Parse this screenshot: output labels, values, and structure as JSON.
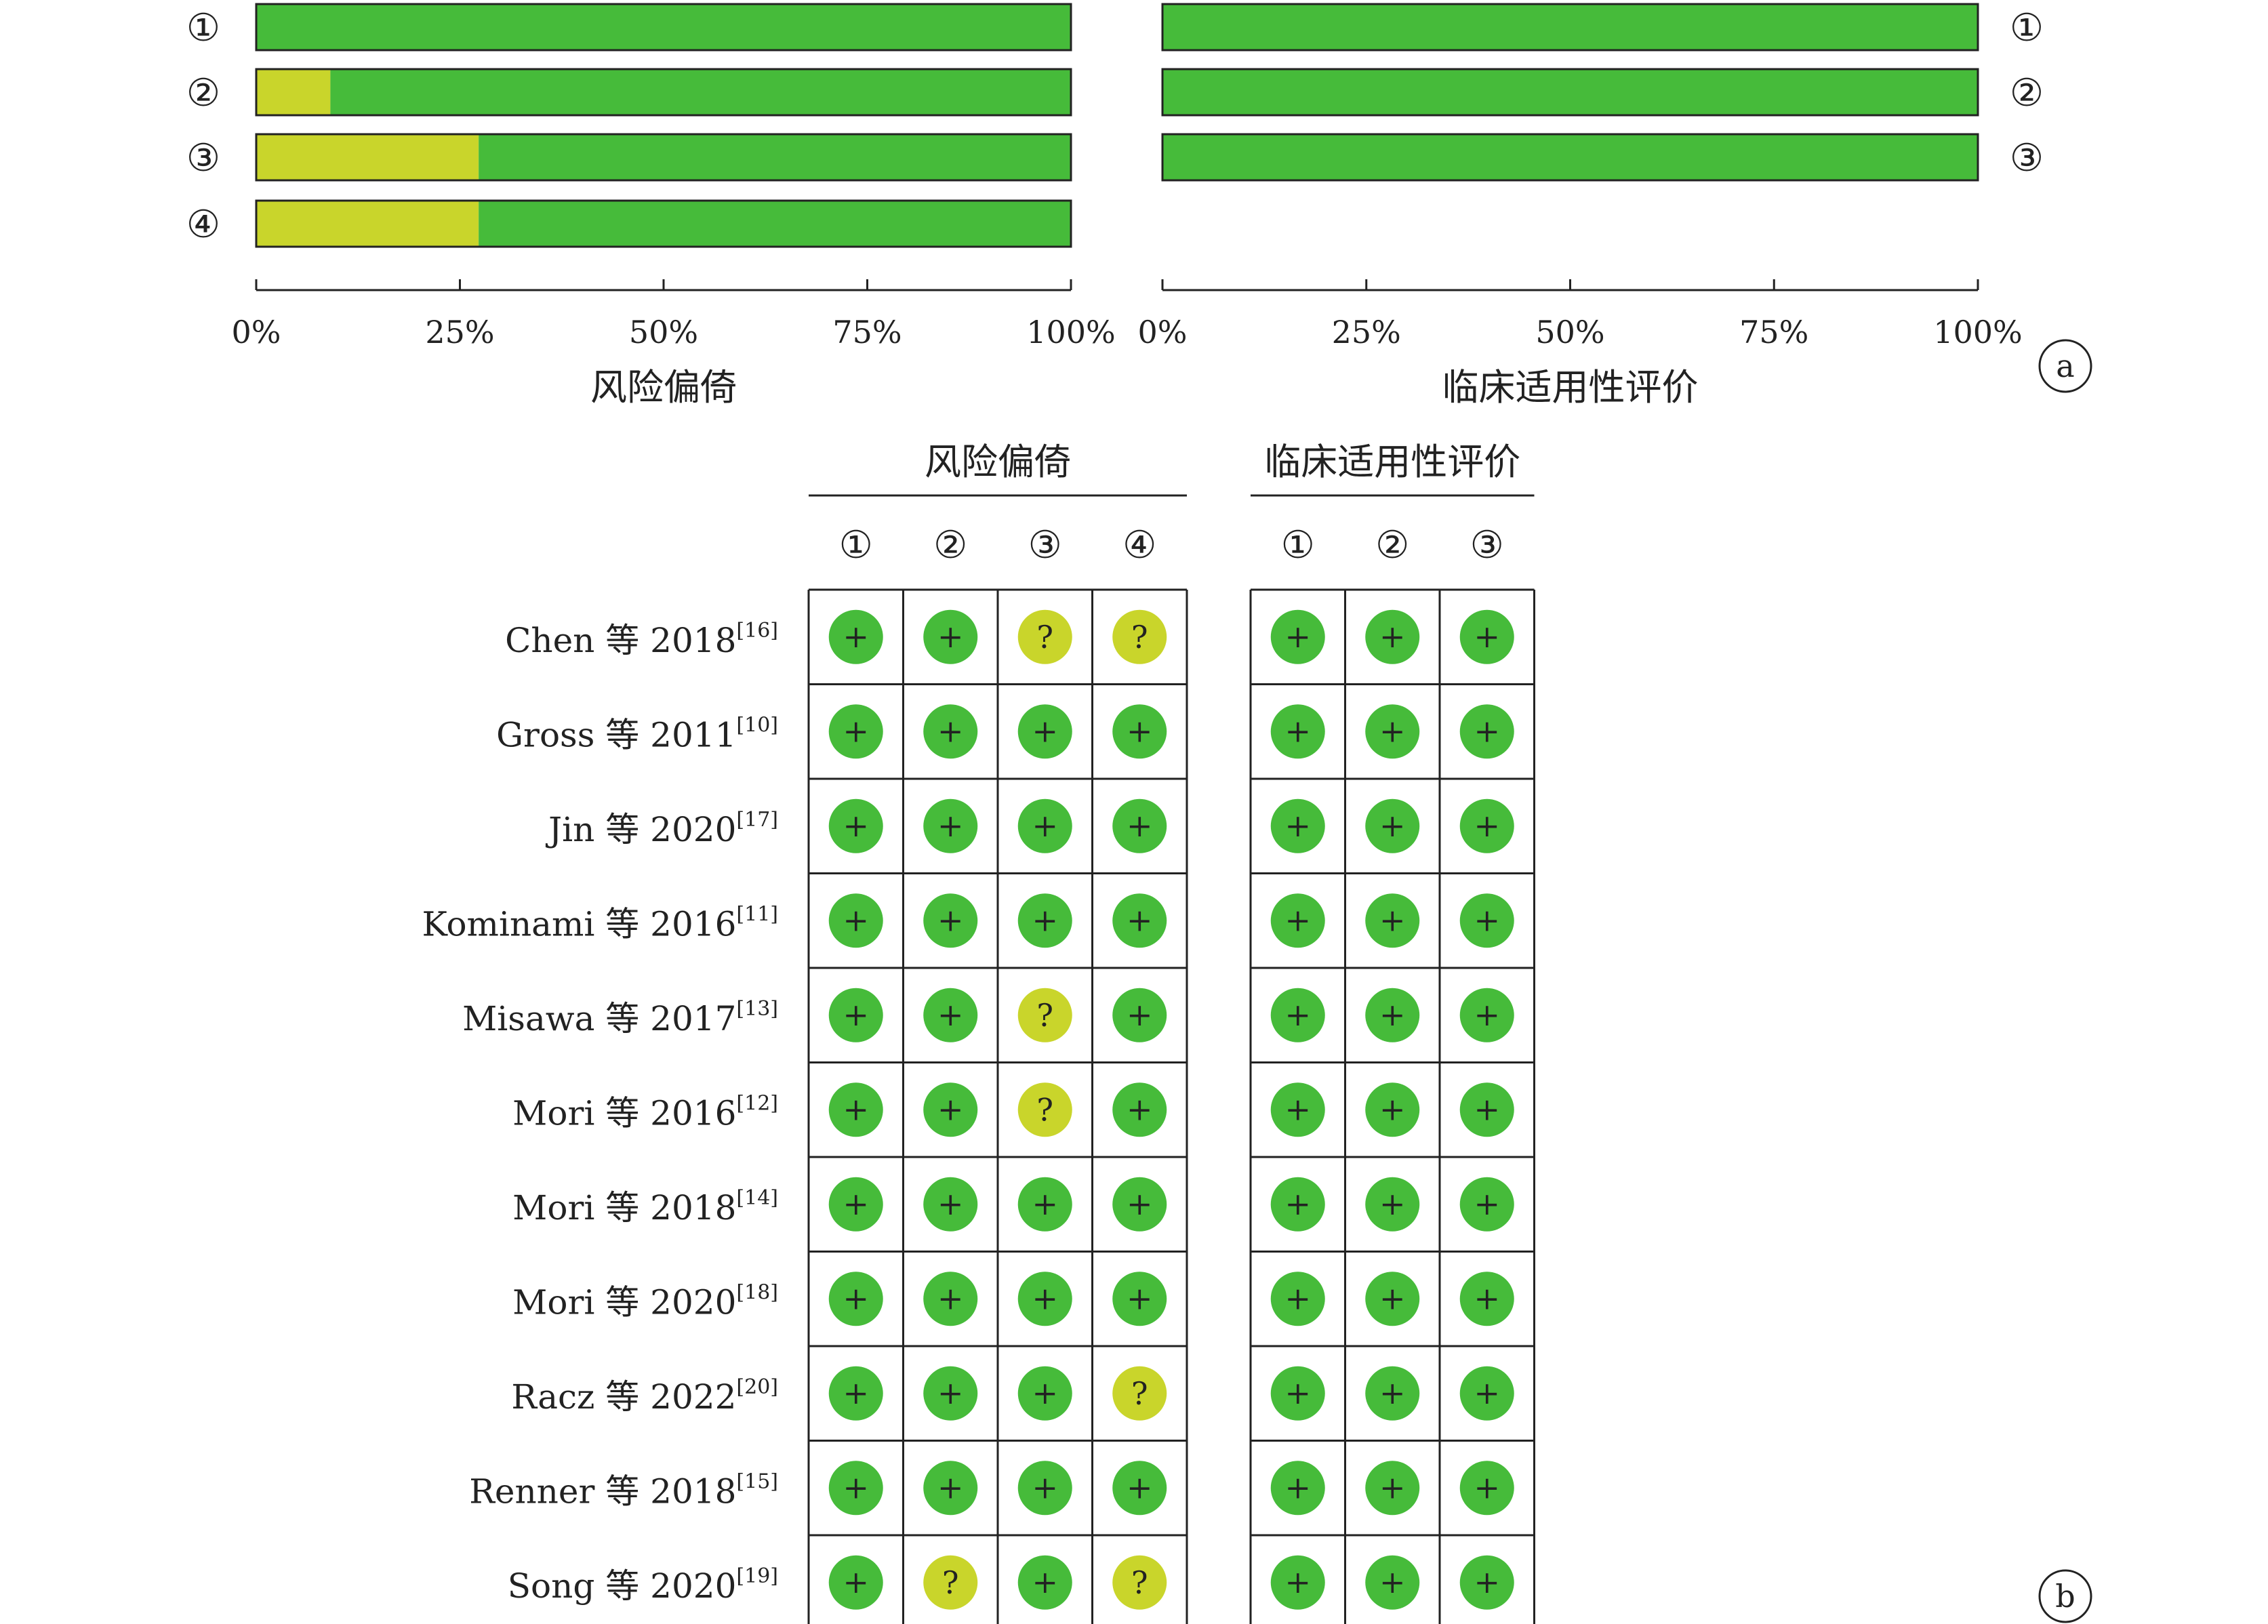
{
  "colors": {
    "low": "#46bb3a",
    "unclear": "#c9d52b",
    "border": "#222222",
    "text": "#222222"
  },
  "chart_data": [
    {
      "type": "bar",
      "orientation": "horizontal",
      "stacked": true,
      "categories": [
        "①",
        "②",
        "③",
        "④"
      ],
      "series": [
        {
          "color": "#c9d52b",
          "values": [
            0,
            9.1,
            27.3,
            27.3
          ]
        },
        {
          "color": "#46bb3a",
          "values": [
            100,
            90.9,
            72.7,
            72.7
          ]
        }
      ],
      "xlim": [
        0,
        100
      ],
      "xticks": [
        "0%",
        "25%",
        "50%",
        "75%",
        "100%"
      ],
      "xlabel": "风险偏倚"
    },
    {
      "type": "bar",
      "orientation": "horizontal",
      "stacked": true,
      "categories": [
        "①",
        "②",
        "③"
      ],
      "series": [
        {
          "color": "#c9d52b",
          "values": [
            0,
            0,
            0
          ]
        },
        {
          "color": "#46bb3a",
          "values": [
            100,
            100,
            100
          ]
        }
      ],
      "xlim": [
        0,
        100
      ],
      "xticks": [
        "0%",
        "25%",
        "50%",
        "75%",
        "100%"
      ],
      "xlabel": "临床适用性评价"
    },
    {
      "type": "table",
      "group_labels": [
        "风险偏倚",
        "临床适用性评价"
      ],
      "risk_columns": [
        "①",
        "②",
        "③",
        "④"
      ],
      "applicability_columns": [
        "①",
        "②",
        "③"
      ],
      "rows": [
        {
          "study": "Chen 等 2018",
          "ref": "[16]",
          "risk": [
            "+",
            "+",
            "?",
            "?"
          ],
          "applicability": [
            "+",
            "+",
            "+"
          ]
        },
        {
          "study": "Gross 等 2011",
          "ref": "[10]",
          "risk": [
            "+",
            "+",
            "+",
            "+"
          ],
          "applicability": [
            "+",
            "+",
            "+"
          ]
        },
        {
          "study": "Jin 等 2020",
          "ref": "[17]",
          "risk": [
            "+",
            "+",
            "+",
            "+"
          ],
          "applicability": [
            "+",
            "+",
            "+"
          ]
        },
        {
          "study": "Kominami 等 2016",
          "ref": "[11]",
          "risk": [
            "+",
            "+",
            "+",
            "+"
          ],
          "applicability": [
            "+",
            "+",
            "+"
          ]
        },
        {
          "study": "Misawa 等 2017",
          "ref": "[13]",
          "risk": [
            "+",
            "+",
            "?",
            "+"
          ],
          "applicability": [
            "+",
            "+",
            "+"
          ]
        },
        {
          "study": "Mori 等 2016",
          "ref": "[12]",
          "risk": [
            "+",
            "+",
            "?",
            "+"
          ],
          "applicability": [
            "+",
            "+",
            "+"
          ]
        },
        {
          "study": "Mori 等 2018",
          "ref": "[14]",
          "risk": [
            "+",
            "+",
            "+",
            "+"
          ],
          "applicability": [
            "+",
            "+",
            "+"
          ]
        },
        {
          "study": "Mori 等 2020",
          "ref": "[18]",
          "risk": [
            "+",
            "+",
            "+",
            "+"
          ],
          "applicability": [
            "+",
            "+",
            "+"
          ]
        },
        {
          "study": "Racz 等 2022",
          "ref": "[20]",
          "risk": [
            "+",
            "+",
            "+",
            "?"
          ],
          "applicability": [
            "+",
            "+",
            "+"
          ]
        },
        {
          "study": "Renner 等 2018",
          "ref": "[15]",
          "risk": [
            "+",
            "+",
            "+",
            "+"
          ],
          "applicability": [
            "+",
            "+",
            "+"
          ]
        },
        {
          "study": "Song 等 2020",
          "ref": "[19]",
          "risk": [
            "+",
            "?",
            "+",
            "?"
          ],
          "applicability": [
            "+",
            "+",
            "+"
          ]
        }
      ]
    }
  ],
  "panel_labels": {
    "a": "a",
    "b": "b"
  }
}
